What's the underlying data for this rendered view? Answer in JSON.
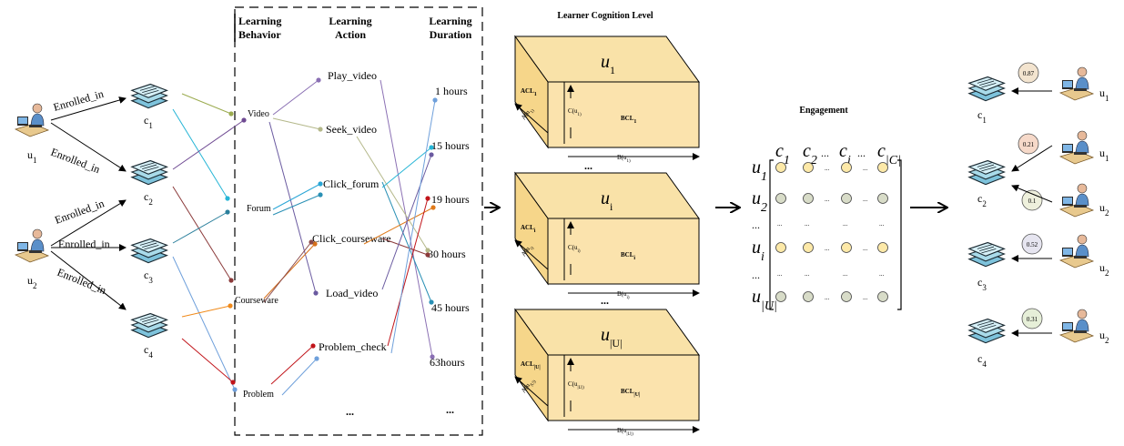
{
  "left_users": [
    {
      "label": "u",
      "sub": "1"
    },
    {
      "label": "u",
      "sub": "2"
    }
  ],
  "left_courses": [
    {
      "label": "c",
      "sub": "1"
    },
    {
      "label": "c",
      "sub": "2"
    },
    {
      "label": "c",
      "sub": "3"
    },
    {
      "label": "c",
      "sub": "4"
    }
  ],
  "enroll_label": "Enrolled_in",
  "headers": {
    "behavior": [
      "Learning",
      "Behavior"
    ],
    "action": [
      "Learning",
      "Action"
    ],
    "duration": [
      "Learning",
      "Duration"
    ]
  },
  "behaviors": [
    "Video",
    "Forum",
    "Courseware",
    "Problem"
  ],
  "actions": [
    "Play_video",
    "Seek_video",
    "Click_forum",
    "Click_courseware",
    "Load_video",
    "Problem_check",
    "..."
  ],
  "durations": [
    "1 hours",
    "15 hours",
    "19 hours",
    "30  hours",
    "45 hours",
    "63hours",
    "..."
  ],
  "cognition": {
    "title": "Learner Cognition Level",
    "boxes": [
      {
        "u": "u",
        "u_sub": "1",
        "acl": "ACL",
        "acl_sub": "1",
        "bcl": "BCL",
        "bcl_sub": "1",
        "c": "C(u",
        "c_sub": "1",
        "b": "B(u",
        "b_sub": "1"
      },
      {
        "u": "u",
        "u_sub": "i",
        "acl": "ACL",
        "acl_sub": "i",
        "bcl": "BCL",
        "bcl_sub": "i",
        "c": "C(u",
        "c_sub": "i",
        "b": "B(u",
        "b_sub": "i"
      },
      {
        "u": "u",
        "u_sub": "|U|",
        "acl": "ACL",
        "acl_sub": "|U|",
        "bcl": "BCL",
        "bcl_sub": "|U|",
        "c": "C(u",
        "c_sub": "|U|",
        "b": "B(u",
        "b_sub": "|U|"
      }
    ],
    "ellipsis": [
      "...",
      "..."
    ]
  },
  "engagement": {
    "title": "Engagement",
    "cols": [
      {
        "label": "c",
        "sub": "1"
      },
      {
        "label": "c",
        "sub": "2"
      },
      {
        "label": "...",
        "sub": ""
      },
      {
        "label": "c",
        "sub": "j"
      },
      {
        "label": "...",
        "sub": ""
      },
      {
        "label": "c",
        "sub": "|C|"
      }
    ],
    "rows": [
      {
        "label": "u",
        "sub": "1"
      },
      {
        "label": "u",
        "sub": "2"
      },
      {
        "label": "...",
        "sub": ""
      },
      {
        "label": "u",
        "sub": "i"
      },
      {
        "label": "...",
        "sub": ""
      },
      {
        "label": "u",
        "sub": "|U|"
      }
    ],
    "filled_color": "#fde9a8",
    "empty_color": "#d8dcc8"
  },
  "results": [
    {
      "course": "c",
      "course_sub": "1",
      "value": "0.87",
      "user": "u",
      "user_sub": "1",
      "color": "#f3e4cf"
    },
    {
      "course": "c",
      "course_sub": "2",
      "value": "0.21",
      "user": "u",
      "user_sub": "1",
      "color": "#f6d9c9"
    },
    {
      "course": "",
      "course_sub": "",
      "value": "0.1",
      "user": "u",
      "user_sub": "2",
      "color": "#eef0dc"
    },
    {
      "course": "c",
      "course_sub": "3",
      "value": "0.52",
      "user": "u",
      "user_sub": "2",
      "color": "#e6e5f0"
    },
    {
      "course": "c",
      "course_sub": "4",
      "value": "0.31",
      "user": "u",
      "user_sub": "2",
      "color": "#e6efd8"
    }
  ]
}
